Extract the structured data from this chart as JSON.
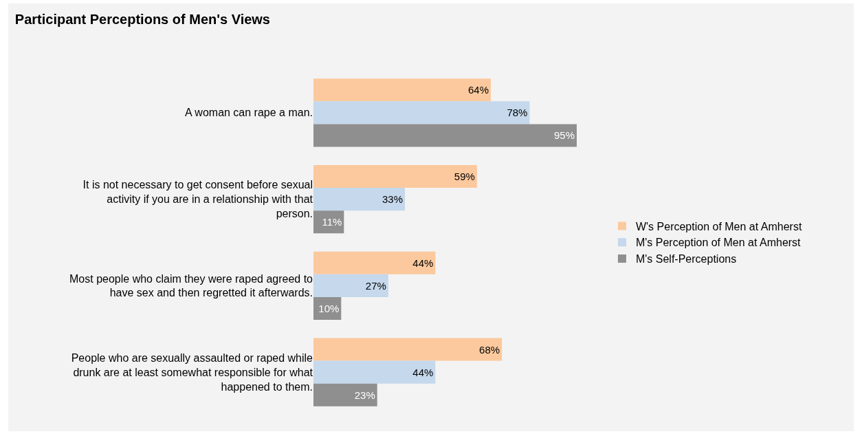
{
  "chart_data": {
    "type": "bar",
    "orientation": "horizontal",
    "title": "Participant Perceptions of Men's Views",
    "categories": [
      "A woman can rape a man.",
      "It is not necessary to get consent before sexual activity if you are in a relationship with that person.",
      "Most people who claim they were raped agreed to have sex and then regretted it afterwards.",
      "People who are sexually assaulted or raped while drunk are at least somewhat responsible for what happened to them."
    ],
    "series": [
      {
        "name": "W's Perception of Men at Amherst",
        "color": "#fbc99d",
        "values": [
          64,
          59,
          44,
          68
        ],
        "value_labels": [
          "64%",
          "59%",
          "44%",
          "68%"
        ]
      },
      {
        "name": "M's Perception of Men at Amherst",
        "color": "#c5d8ec",
        "values": [
          78,
          33,
          27,
          44
        ],
        "value_labels": [
          "78%",
          "33%",
          "27%",
          "44%"
        ]
      },
      {
        "name": "M's Self-Perceptions",
        "color": "#8f8f8f",
        "values": [
          95,
          11,
          10,
          23
        ],
        "value_labels": [
          "95%",
          "11%",
          "10%",
          "23%"
        ]
      }
    ],
    "legend": "right",
    "tick_labels": "y"
  }
}
